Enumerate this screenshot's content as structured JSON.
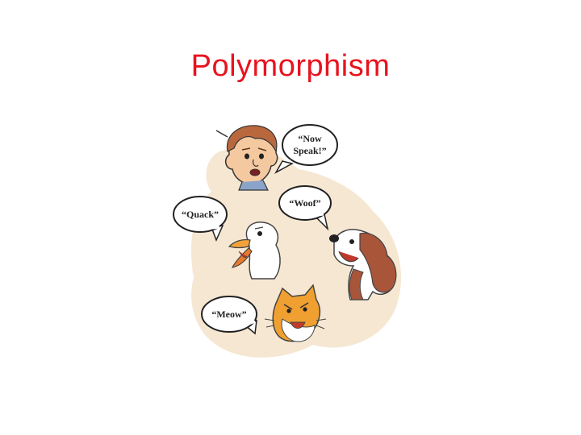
{
  "slide": {
    "title": "Polymorphism",
    "title_color": "#e8131f",
    "background_color": "#ffffff"
  },
  "illustration": {
    "background_blob_color": "#f6e7d2",
    "speech_bubbles": {
      "person": [
        "“Now",
        "Speak!”"
      ],
      "duck": "“Quack”",
      "dog": "“Woof”",
      "cat": "“Meow”"
    },
    "characters": [
      "person-icon",
      "duck-icon",
      "dog-icon",
      "cat-icon"
    ]
  }
}
